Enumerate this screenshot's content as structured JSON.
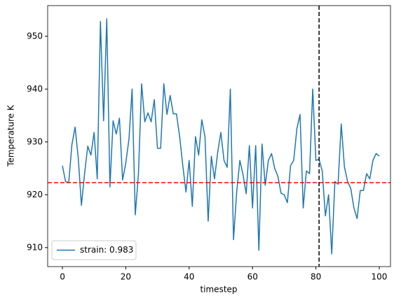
{
  "chart_data": {
    "type": "line",
    "xlabel": "timestep",
    "ylabel": "Temperature K",
    "x": [
      0,
      1,
      2,
      3,
      4,
      5,
      6,
      7,
      8,
      9,
      10,
      11,
      12,
      13,
      14,
      15,
      16,
      17,
      18,
      19,
      20,
      21,
      22,
      23,
      24,
      25,
      26,
      27,
      28,
      29,
      30,
      31,
      32,
      33,
      34,
      35,
      36,
      37,
      38,
      39,
      40,
      41,
      42,
      43,
      44,
      45,
      46,
      47,
      48,
      49,
      50,
      51,
      52,
      53,
      54,
      55,
      56,
      57,
      58,
      59,
      60,
      61,
      62,
      63,
      64,
      65,
      66,
      67,
      68,
      69,
      70,
      71,
      72,
      73,
      74,
      75,
      76,
      77,
      78,
      79,
      80,
      81,
      82,
      83,
      84,
      85,
      86,
      87,
      88,
      89,
      90,
      91,
      92,
      93,
      94,
      95,
      96,
      97,
      98,
      99,
      100
    ],
    "series": [
      {
        "name": "strain: 0.983",
        "color": "#1f77b4",
        "values": [
          925.5,
          922.5,
          922.3,
          929.5,
          932.8,
          927,
          918,
          924,
          929.2,
          927.5,
          931.8,
          923,
          952.8,
          934,
          953.3,
          921.5,
          934,
          931.5,
          934.5,
          922.8,
          926,
          930.5,
          940,
          916.2,
          924,
          941,
          933.8,
          935.5,
          933.8,
          938,
          928.8,
          928.8,
          941,
          935.2,
          938.8,
          935.3,
          935.3,
          931,
          925.5,
          920.5,
          926.5,
          917.8,
          931,
          927.5,
          934.2,
          931,
          915,
          927.3,
          923,
          928,
          931.8,
          926.5,
          925.2,
          940,
          911.5,
          920.5,
          926.5,
          923.8,
          920.2,
          929.3,
          917.5,
          929.3,
          909.5,
          929.6,
          921.8,
          926.5,
          927.8,
          925,
          923.5,
          920.3,
          920,
          918.5,
          925.5,
          926.5,
          932.5,
          935.2,
          917.5,
          924.5,
          924,
          940,
          926.5,
          926.7,
          924.5,
          916,
          920,
          908.8,
          922.5,
          922,
          933.4,
          925.3,
          922.5,
          921.2,
          917.5,
          915.5,
          920.8,
          920.8,
          924,
          923,
          926.5,
          927.8,
          927.3
        ]
      }
    ],
    "hline": {
      "value": 922.3,
      "color": "#ff0000"
    },
    "vline": {
      "value": 81,
      "color": "#000000"
    },
    "xlim": [
      -4.65,
      103.54
    ],
    "ylim": [
      906.4,
      955.8
    ],
    "xticks": [
      0,
      20,
      40,
      60,
      80,
      100
    ],
    "yticks": [
      910,
      920,
      930,
      940,
      950
    ],
    "legend": "lower left"
  }
}
